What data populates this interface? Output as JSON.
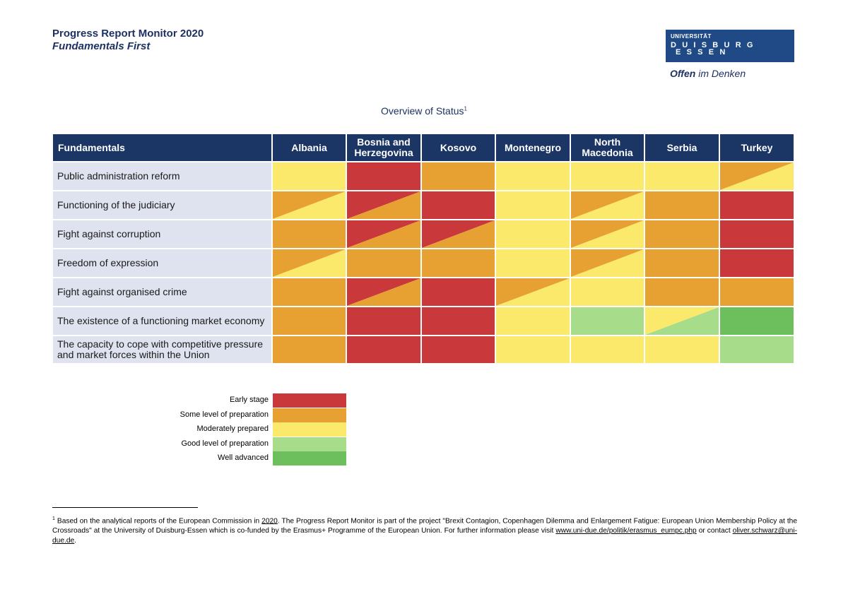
{
  "header": {
    "title": "Progress Report Monitor 2020",
    "subtitle": "Fundamentals First"
  },
  "logo": {
    "line1": "UNIVERSITÄT",
    "line2": "D U I S B U R G",
    "line3": "E S S E N",
    "tagline_bold": "Offen",
    "tagline_rest": " im Denken",
    "color": "#1f4a85"
  },
  "overview": {
    "title": "Overview of Status",
    "footnote_mark": "1"
  },
  "colors": {
    "early": "#c9393b",
    "some": "#e7a132",
    "moderate": "#fbe96c",
    "good": "#a6dc8a",
    "well": "#6dbf5e",
    "header_bg": "#1b3565",
    "label_bg": "#dfe3f0"
  },
  "table": {
    "header_first": "Fundamentals",
    "columns": [
      "Albania",
      "Bosnia and Herzegovina",
      "Kosovo",
      "Montenegro",
      "North Macedonia",
      "Serbia",
      "Turkey"
    ],
    "rows": [
      "Public administration reform",
      "Functioning of the judiciary",
      "Fight against corruption",
      "Freedom of expression",
      "Fight against organised crime",
      "The existence of a functioning market economy",
      "The capacity to cope with competitive pressure and market forces within the Union"
    ],
    "ratings": [
      [
        "moderate",
        "early",
        "some",
        "moderate",
        "moderate",
        "moderate",
        "some>moderate"
      ],
      [
        "some>moderate",
        "early>some",
        "early",
        "moderate",
        "some>moderate",
        "some",
        "early"
      ],
      [
        "some",
        "early>some",
        "early>some",
        "moderate",
        "some>moderate",
        "some",
        "early"
      ],
      [
        "some>moderate",
        "some",
        "some",
        "moderate",
        "some>moderate",
        "some",
        "early"
      ],
      [
        "some",
        "early>some",
        "early",
        "some>moderate",
        "moderate",
        "some",
        "some"
      ],
      [
        "some",
        "early",
        "early",
        "moderate",
        "good",
        "moderate>good",
        "well"
      ],
      [
        "some",
        "early",
        "early",
        "moderate",
        "moderate",
        "moderate",
        "good"
      ]
    ]
  },
  "legend": [
    {
      "label": "Early stage",
      "key": "early"
    },
    {
      "label": "Some level of preparation",
      "key": "some"
    },
    {
      "label": "Moderately prepared",
      "key": "moderate"
    },
    {
      "label": "Good level of preparation",
      "key": "good"
    },
    {
      "label": "Well advanced",
      "key": "well"
    }
  ],
  "footnote": {
    "mark": "1",
    "text_a": " Based on the analytical reports of the European Commission in ",
    "link_year": "2020",
    "text_b": ". The Progress Report Monitor is part of the project \"Brexit Contagion, Copenhagen Dilemma and Enlargement Fatigue: European Union Membership Policy at the Crossroads\" at the University of Duisburg-Essen which is co-funded by the Erasmus+ Programme of the European Union. For further information please visit ",
    "link_url": "www.uni-due.de/politik/erasmus_eumpc.php",
    "text_c": " or contact ",
    "link_email": "oliver.schwarz@uni-due.de",
    "text_d": "."
  }
}
